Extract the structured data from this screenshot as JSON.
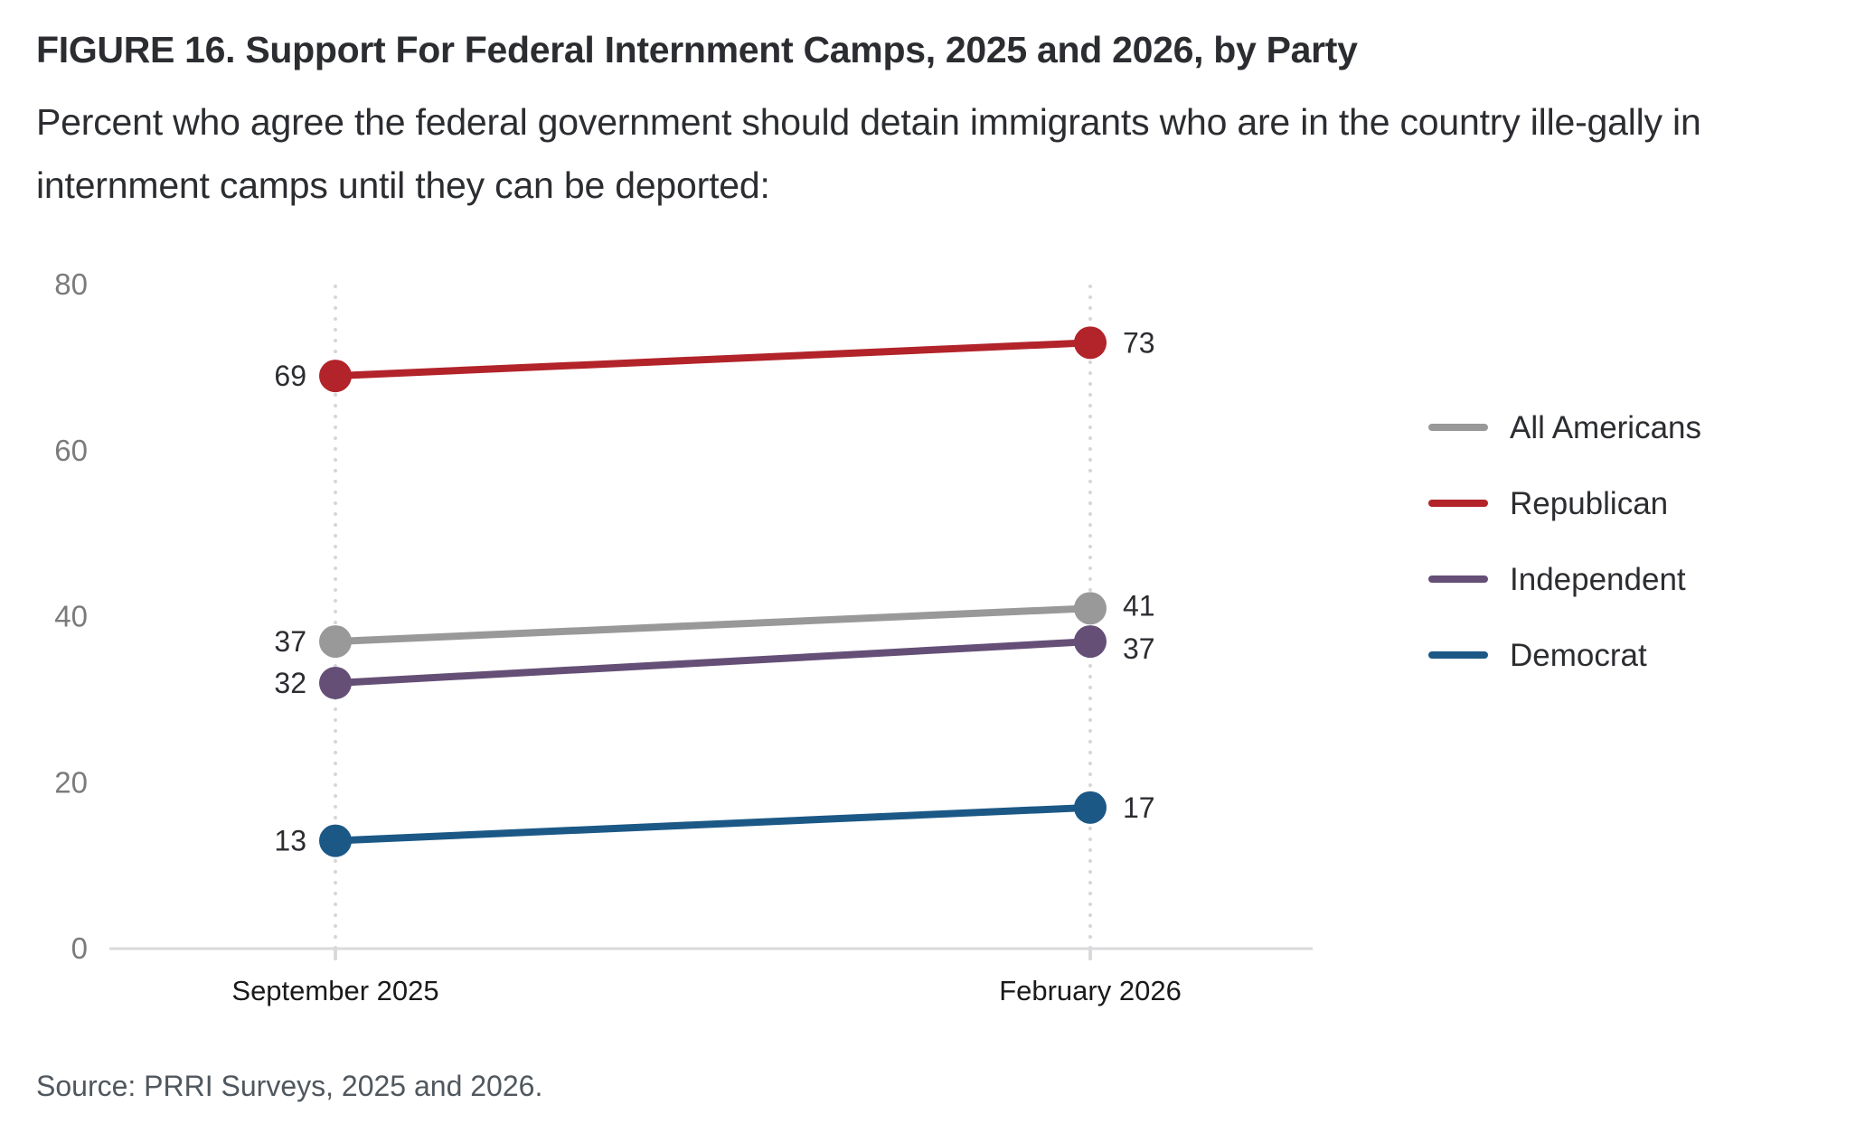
{
  "title": "FIGURE 16.  Support For Federal Internment Camps, 2025 and 2026, by Party",
  "subtitle": "Percent who agree the federal government should detain immigrants who are in the country ille-gally in internment camps until they can be deported:",
  "source": "Source: PRRI Surveys, 2025 and 2026.",
  "chart_data": {
    "type": "line",
    "title": "Support For Federal Internment Camps, 2025 and 2026, by Party",
    "xlabel": "",
    "ylabel": "",
    "x": [
      "September 2025",
      "February 2026"
    ],
    "ylim": [
      0,
      80
    ],
    "yticks": [
      0,
      20,
      40,
      60,
      80
    ],
    "grid": false,
    "legend_position": "right",
    "series": [
      {
        "name": "All Americans",
        "color": "#999999",
        "values": [
          37,
          41
        ]
      },
      {
        "name": "Republican",
        "color": "#b2232a",
        "values": [
          69,
          73
        ]
      },
      {
        "name": "Independent",
        "color": "#654f76",
        "values": [
          32,
          37
        ]
      },
      {
        "name": "Democrat",
        "color": "#1b5886",
        "values": [
          13,
          17
        ]
      }
    ]
  }
}
